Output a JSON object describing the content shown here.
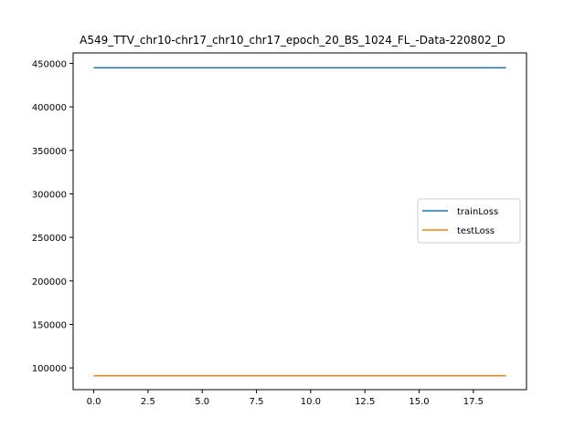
{
  "chart_data": {
    "type": "line",
    "title": "A549_TTV_chr10-chr17_chr10_chr17_epoch_20_BS_1024_FL_-Data-220802_D",
    "xlabel": "",
    "ylabel": "",
    "xlim": [
      -0.95,
      19.95
    ],
    "ylim": [
      75000,
      462000
    ],
    "x_ticks": [
      0.0,
      2.5,
      5.0,
      7.5,
      10.0,
      12.5,
      15.0,
      17.5
    ],
    "x_tick_labels": [
      "0.0",
      "2.5",
      "5.0",
      "7.5",
      "10.0",
      "12.5",
      "15.0",
      "17.5"
    ],
    "y_ticks": [
      100000,
      150000,
      200000,
      250000,
      300000,
      350000,
      400000,
      450000
    ],
    "y_tick_labels": [
      "100000",
      "150000",
      "200000",
      "250000",
      "300000",
      "350000",
      "400000",
      "450000"
    ],
    "grid": false,
    "legend_position": "center-right",
    "x": [
      0,
      1,
      2,
      3,
      4,
      5,
      6,
      7,
      8,
      9,
      10,
      11,
      12,
      13,
      14,
      15,
      16,
      17,
      18,
      19
    ],
    "series": [
      {
        "name": "trainLoss",
        "color": "#1f77b4",
        "values": [
          445000,
          445000,
          445000,
          445000,
          445000,
          445000,
          445000,
          445000,
          445000,
          445000,
          445000,
          445000,
          445000,
          445000,
          445000,
          445000,
          445000,
          445000,
          445000,
          445000
        ]
      },
      {
        "name": "testLoss",
        "color": "#ff7f0e",
        "values": [
          91000,
          91000,
          91000,
          91000,
          91000,
          91000,
          91000,
          91000,
          91000,
          91000,
          91000,
          91000,
          91000,
          91000,
          91000,
          91000,
          91000,
          91000,
          91000,
          91000
        ]
      }
    ]
  }
}
